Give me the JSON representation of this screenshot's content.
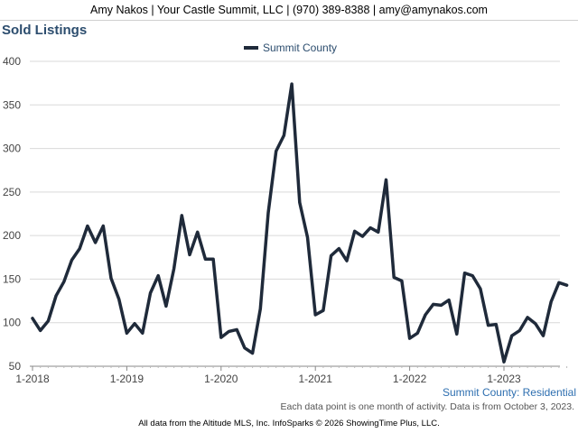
{
  "header": {
    "contact": "Amy Nakos | Your Castle Summit, LLC | (970) 389-8388 | amy@amynakos.com"
  },
  "footer": {
    "subtitle": "Summit County: Residential",
    "note": "Each data point is one month of activity. Data is from October 3, 2023.",
    "credit": "All data from the Altitude MLS, Inc. InfoSparks © 2026 ShowingTime Plus, LLC."
  },
  "colors": {
    "series": "#1f2a3a",
    "title": "#2c4d6e",
    "grid": "#d9d9d9"
  },
  "chart_data": {
    "type": "line",
    "title": "Sold Listings",
    "xlabel": "",
    "ylabel": "",
    "ylim": [
      50,
      400
    ],
    "yticks": [
      50,
      100,
      150,
      200,
      250,
      300,
      350,
      400
    ],
    "xticks": [
      "1-2018",
      "1-2019",
      "1-2020",
      "1-2021",
      "1-2022",
      "1-2023"
    ],
    "grid": true,
    "legend": "top-center",
    "start_month": "2018-01",
    "series": [
      {
        "name": "Summit County",
        "values": [
          105,
          91,
          102,
          131,
          147,
          172,
          185,
          211,
          192,
          211,
          151,
          127,
          88,
          99,
          88,
          134,
          154,
          119,
          162,
          223,
          178,
          204,
          173,
          173,
          83,
          90,
          92,
          71,
          65,
          116,
          226,
          297,
          315,
          374,
          238,
          198,
          109,
          114,
          177,
          185,
          171,
          205,
          199,
          209,
          204,
          264,
          152,
          148,
          82,
          88,
          109,
          121,
          120,
          126,
          87,
          157,
          154,
          139,
          97,
          98,
          55,
          85,
          91,
          106,
          99,
          85,
          124,
          146,
          143
        ]
      }
    ]
  }
}
